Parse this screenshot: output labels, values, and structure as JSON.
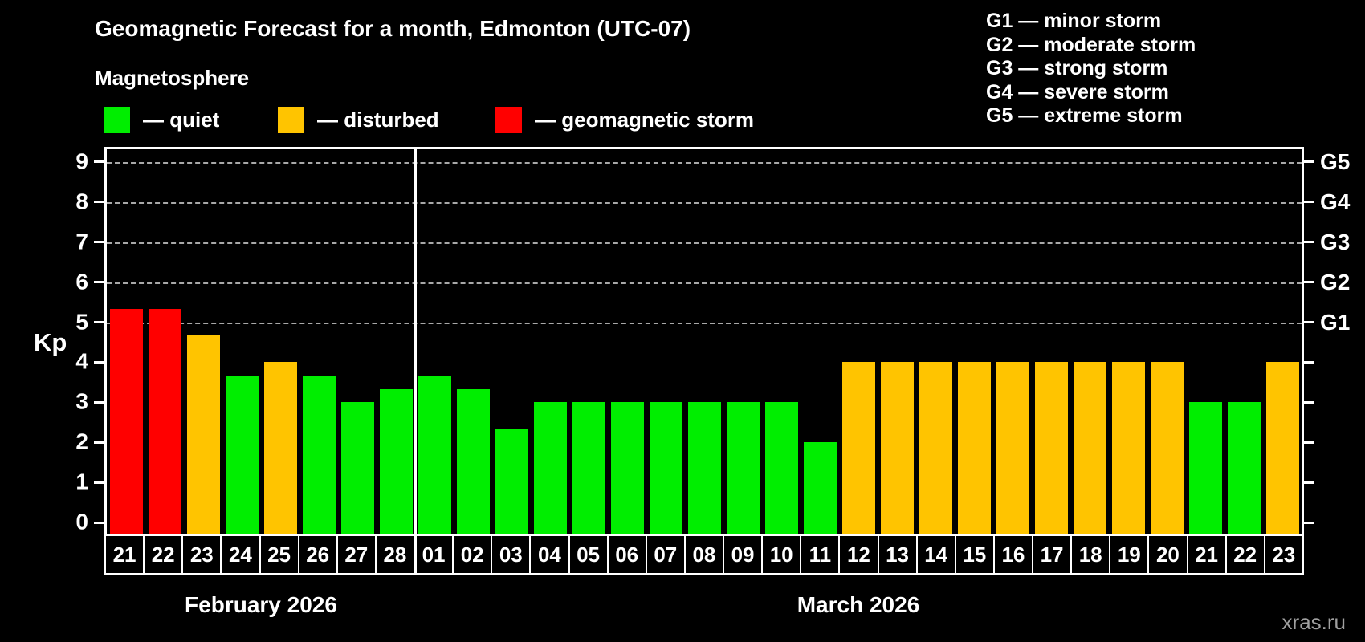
{
  "title": "Geomagnetic Forecast for a month, Edmonton (UTC-07)",
  "subtitle": "Magnetosphere",
  "status_legend": {
    "items": [
      {
        "key": "quiet",
        "label": "— quiet",
        "color": "#00ee00"
      },
      {
        "key": "disturbed",
        "label": "— disturbed",
        "color": "#ffc400"
      },
      {
        "key": "storm",
        "label": "— geomagnetic storm",
        "color": "#ff0000"
      }
    ]
  },
  "g_scale_legend": [
    "G1 — minor storm",
    "G2 — moderate storm",
    "G3 — strong storm",
    "G4 — severe storm",
    "G5 — extreme storm"
  ],
  "watermark": "xras.ru",
  "chart_data": {
    "type": "bar",
    "title": "Geomagnetic Forecast for a month, Edmonton (UTC-07)",
    "xlabel": "",
    "ylabel": "Kp",
    "ylim": [
      0,
      9.6
    ],
    "y_ticks": [
      0,
      1,
      2,
      3,
      4,
      5,
      6,
      7,
      8,
      9
    ],
    "gridlines_at": [
      5,
      6,
      7,
      8,
      9
    ],
    "grid": "dashed-horizontal",
    "legend_position": "top-left",
    "right_axis_labels": [
      {
        "kp": 5,
        "label": "G1"
      },
      {
        "kp": 6,
        "label": "G2"
      },
      {
        "kp": 7,
        "label": "G3"
      },
      {
        "kp": 8,
        "label": "G4"
      },
      {
        "kp": 9,
        "label": "G5"
      }
    ],
    "level_colors": {
      "quiet": "#00ee00",
      "disturbed": "#ffc400",
      "storm": "#ff0000"
    },
    "months": [
      {
        "label": "February 2026",
        "days": [
          {
            "day": "21",
            "kp": 5.33,
            "level": "storm"
          },
          {
            "day": "22",
            "kp": 5.33,
            "level": "storm"
          },
          {
            "day": "23",
            "kp": 4.67,
            "level": "disturbed"
          },
          {
            "day": "24",
            "kp": 3.67,
            "level": "quiet"
          },
          {
            "day": "25",
            "kp": 4.0,
            "level": "disturbed"
          },
          {
            "day": "26",
            "kp": 3.67,
            "level": "quiet"
          },
          {
            "day": "27",
            "kp": 3.0,
            "level": "quiet"
          },
          {
            "day": "28",
            "kp": 3.33,
            "level": "quiet"
          }
        ]
      },
      {
        "label": "March 2026",
        "days": [
          {
            "day": "01",
            "kp": 3.67,
            "level": "quiet"
          },
          {
            "day": "02",
            "kp": 3.33,
            "level": "quiet"
          },
          {
            "day": "03",
            "kp": 2.33,
            "level": "quiet"
          },
          {
            "day": "04",
            "kp": 3.0,
            "level": "quiet"
          },
          {
            "day": "05",
            "kp": 3.0,
            "level": "quiet"
          },
          {
            "day": "06",
            "kp": 3.0,
            "level": "quiet"
          },
          {
            "day": "07",
            "kp": 3.0,
            "level": "quiet"
          },
          {
            "day": "08",
            "kp": 3.0,
            "level": "quiet"
          },
          {
            "day": "09",
            "kp": 3.0,
            "level": "quiet"
          },
          {
            "day": "10",
            "kp": 3.0,
            "level": "quiet"
          },
          {
            "day": "11",
            "kp": 2.0,
            "level": "quiet"
          },
          {
            "day": "12",
            "kp": 4.0,
            "level": "disturbed"
          },
          {
            "day": "13",
            "kp": 4.0,
            "level": "disturbed"
          },
          {
            "day": "14",
            "kp": 4.0,
            "level": "disturbed"
          },
          {
            "day": "15",
            "kp": 4.0,
            "level": "disturbed"
          },
          {
            "day": "16",
            "kp": 4.0,
            "level": "disturbed"
          },
          {
            "day": "17",
            "kp": 4.0,
            "level": "disturbed"
          },
          {
            "day": "18",
            "kp": 4.0,
            "level": "disturbed"
          },
          {
            "day": "19",
            "kp": 4.0,
            "level": "disturbed"
          },
          {
            "day": "20",
            "kp": 4.0,
            "level": "disturbed"
          },
          {
            "day": "21",
            "kp": 3.0,
            "level": "quiet"
          },
          {
            "day": "22",
            "kp": 3.0,
            "level": "quiet"
          },
          {
            "day": "23",
            "kp": 4.0,
            "level": "disturbed"
          }
        ]
      }
    ]
  }
}
